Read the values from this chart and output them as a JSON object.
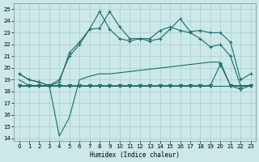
{
  "xlabel": "Humidex (Indice chaleur)",
  "xlim": [
    -0.5,
    23.5
  ],
  "ylim": [
    13.8,
    25.5
  ],
  "yticks": [
    14,
    15,
    16,
    17,
    18,
    19,
    20,
    21,
    22,
    23,
    24,
    25
  ],
  "xticks": [
    0,
    1,
    2,
    3,
    4,
    5,
    6,
    7,
    8,
    9,
    10,
    11,
    12,
    13,
    14,
    15,
    16,
    17,
    18,
    19,
    20,
    21,
    22,
    23
  ],
  "bg_color": "#cce8e8",
  "line_color": "#1a6b6b",
  "line1_x": [
    0,
    1,
    2,
    3,
    4,
    5,
    6,
    7,
    8,
    9,
    10,
    11,
    12,
    13,
    14,
    15,
    16,
    17,
    18,
    19,
    20,
    21,
    22,
    23
  ],
  "line1_y": [
    19.5,
    19.0,
    18.8,
    18.5,
    19.0,
    21.0,
    22.0,
    23.3,
    23.4,
    24.8,
    23.5,
    22.5,
    22.5,
    22.3,
    22.5,
    23.3,
    24.2,
    23.1,
    23.2,
    23.0,
    23.0,
    22.2,
    19.0,
    19.5
  ],
  "line1_marker": "+",
  "line2_x": [
    0,
    1,
    2,
    3,
    4,
    5,
    6,
    7,
    8,
    9,
    10,
    11,
    12,
    13,
    14,
    15,
    16,
    17,
    18,
    19,
    20,
    21,
    22,
    23
  ],
  "line2_y": [
    19.5,
    19.0,
    18.8,
    18.5,
    18.8,
    21.3,
    22.2,
    23.3,
    24.8,
    23.3,
    22.5,
    22.3,
    22.5,
    22.5,
    23.2,
    23.5,
    23.2,
    23.0,
    22.5,
    21.8,
    22.0,
    21.0,
    18.5,
    18.5
  ],
  "line2_marker": "+",
  "line3_x": [
    0,
    1,
    2,
    3,
    4,
    5,
    6,
    7,
    8,
    9,
    10,
    11,
    12,
    13,
    14,
    15,
    16,
    17,
    18,
    19,
    20,
    21,
    22,
    23
  ],
  "line3_y": [
    19.0,
    18.5,
    18.5,
    18.5,
    14.2,
    15.8,
    19.0,
    19.3,
    19.5,
    19.5,
    19.6,
    19.7,
    19.8,
    19.9,
    20.0,
    20.1,
    20.2,
    20.3,
    20.4,
    20.5,
    20.5,
    18.5,
    18.5,
    18.5
  ],
  "line3_marker": "",
  "line4_x": [
    0,
    1,
    2,
    3,
    4,
    5,
    6,
    7,
    8,
    9,
    10,
    11,
    12,
    13,
    14,
    15,
    16,
    17,
    18,
    19,
    20,
    21,
    22,
    23
  ],
  "line4_y": [
    18.5,
    18.5,
    18.5,
    18.5,
    18.5,
    18.5,
    18.5,
    18.5,
    18.5,
    18.5,
    18.5,
    18.5,
    18.5,
    18.5,
    18.5,
    18.5,
    18.5,
    18.5,
    18.5,
    18.5,
    18.5,
    18.5,
    18.5,
    18.5
  ],
  "line4_marker": "v",
  "line5_x": [
    0,
    1,
    2,
    3,
    4,
    5,
    6,
    7,
    8,
    9,
    10,
    11,
    12,
    13,
    14,
    15,
    16,
    17,
    18,
    19,
    20,
    21,
    22,
    23
  ],
  "line5_y": [
    18.5,
    18.5,
    18.5,
    18.5,
    18.5,
    18.5,
    18.5,
    18.5,
    18.5,
    18.5,
    18.5,
    18.5,
    18.5,
    18.5,
    18.5,
    18.5,
    18.5,
    18.5,
    18.5,
    18.5,
    20.3,
    18.5,
    18.2,
    18.5
  ],
  "line5_marker": "v"
}
